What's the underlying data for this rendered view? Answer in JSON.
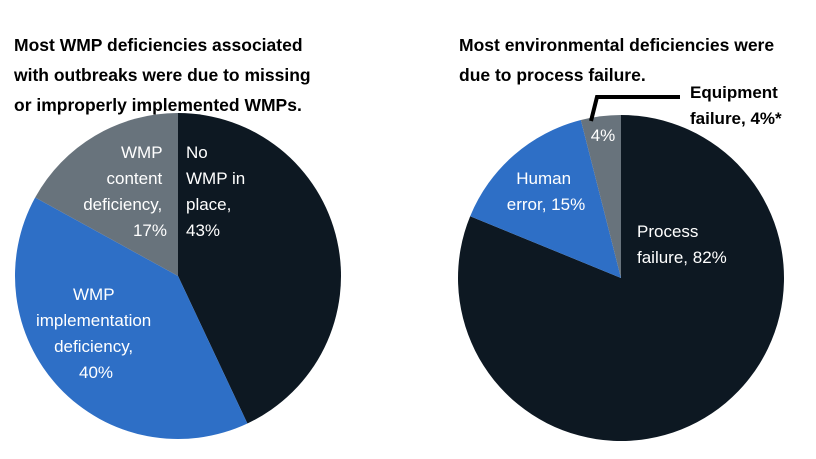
{
  "colors": {
    "dark": "#0d1822",
    "blue": "#2e6fc6",
    "gray": "#68737c"
  },
  "chart_data": [
    {
      "type": "pie",
      "title": "Most WMP deficiencies associated with outbreaks were due to missing or improperly implemented WMPs.",
      "title_lines": [
        "Most WMP deficiencies associated",
        "with outbreaks were due to missing",
        "or improperly implemented WMPs."
      ],
      "slices": [
        {
          "label": "No WMP in place, 43%",
          "value": 43,
          "lines": [
            "No",
            "WMP in",
            "place,",
            "43%"
          ],
          "color": "#0d1822"
        },
        {
          "label": "WMP implementation deficiency, 40%",
          "value": 40,
          "lines": [
            "WMP",
            "implementation",
            "deficiency,",
            "40%"
          ],
          "color": "#2e6fc6"
        },
        {
          "label": "WMP content deficiency, 17%",
          "value": 17,
          "lines": [
            "WMP",
            "content",
            "deficiency,",
            "17%"
          ],
          "color": "#68737c"
        }
      ]
    },
    {
      "type": "pie",
      "title": "Most environmental deficiencies were due to process failure.",
      "title_lines": [
        "Most environmental deficiencies were",
        "due to process failure."
      ],
      "slices": [
        {
          "label": "Process failure, 82%",
          "value": 82,
          "lines": [
            "Process",
            "failure, 82%"
          ],
          "color": "#0d1822"
        },
        {
          "label": "Human error, 15%",
          "value": 15,
          "lines": [
            "Human",
            "error, 15%"
          ],
          "color": "#2e6fc6"
        },
        {
          "label": "4%",
          "value": 4,
          "lines": [
            "4%"
          ],
          "color": "#68737c"
        }
      ],
      "callout": {
        "lines": [
          "Equipment",
          "failure, 4%*"
        ]
      }
    }
  ]
}
